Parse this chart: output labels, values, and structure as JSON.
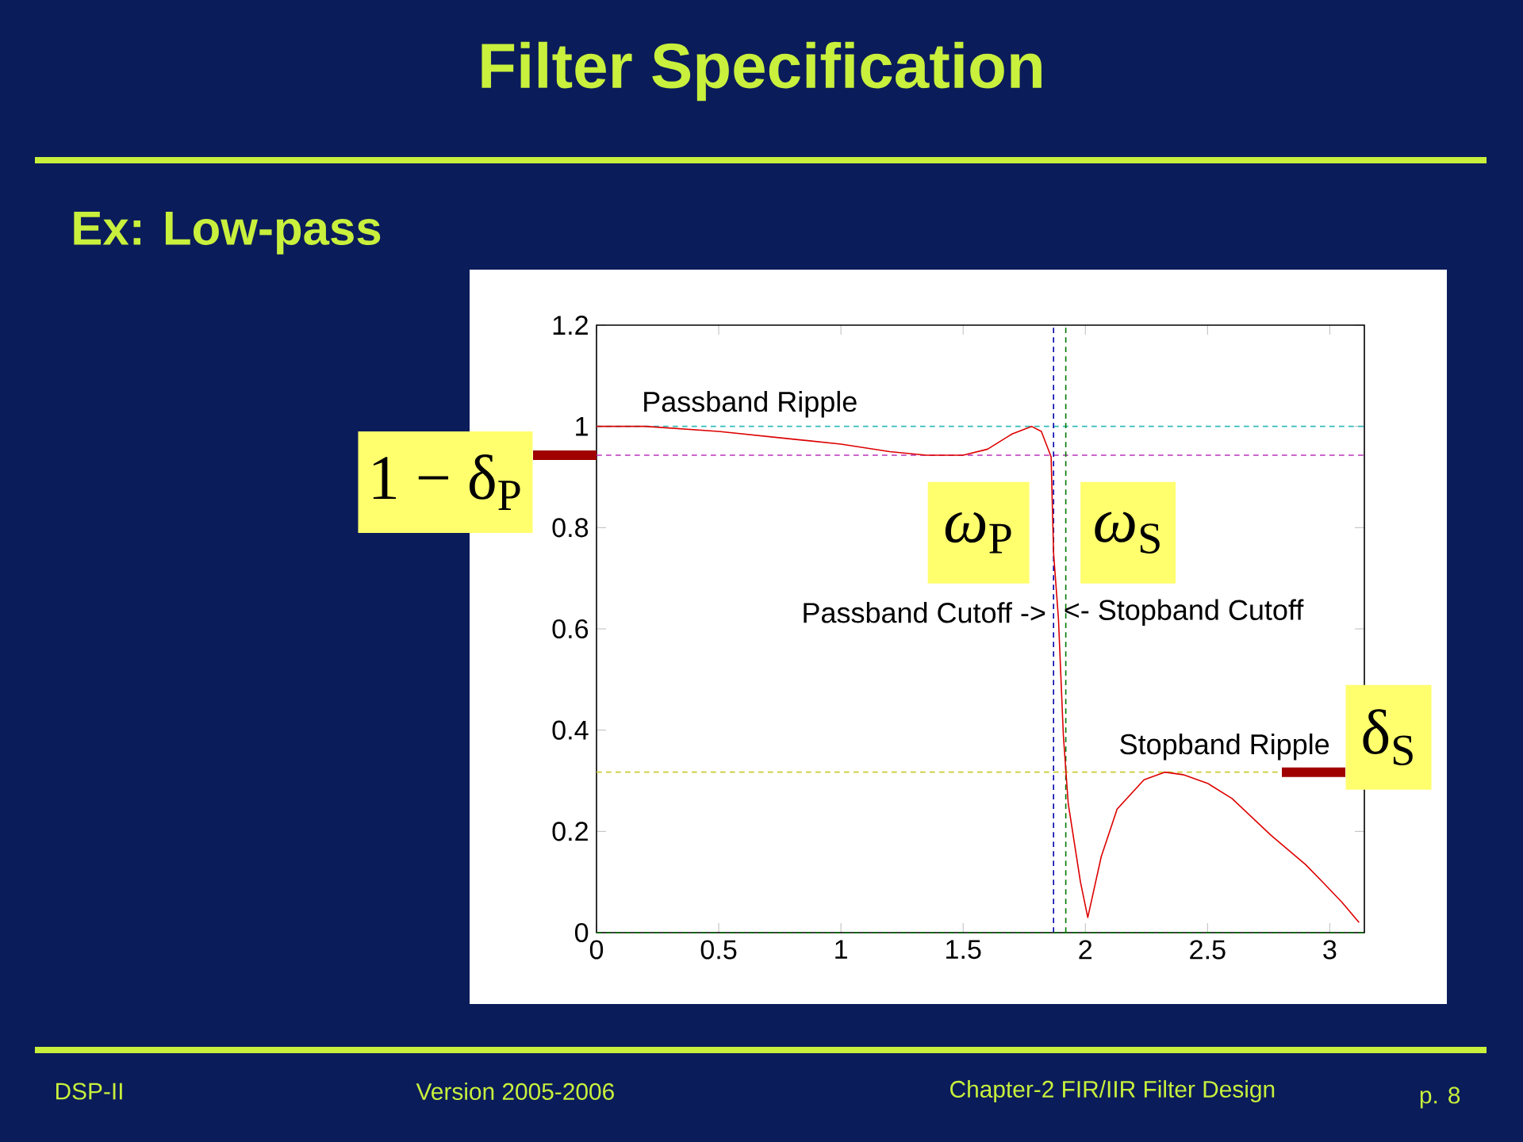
{
  "chart_data": {
    "type": "line",
    "title": "Filter Specification",
    "subtitle": "Ex: Low-pass",
    "x": [
      0,
      0.2,
      0.5,
      0.8,
      1.0,
      1.2,
      1.35,
      1.5,
      1.6,
      1.7,
      1.78,
      1.82,
      1.86,
      1.87,
      1.89,
      1.91,
      1.93,
      1.98,
      2.01,
      2.065,
      2.13,
      2.24,
      2.325,
      2.4,
      2.5,
      2.6,
      2.76,
      2.9,
      2.975,
      3.05,
      3.12
    ],
    "values": [
      1.0,
      1.0,
      0.99,
      0.975,
      0.965,
      0.95,
      0.943,
      0.943,
      0.955,
      0.985,
      1.0,
      0.99,
      0.94,
      0.75,
      0.62,
      0.39,
      0.255,
      0.1,
      0.03,
      0.15,
      0.244,
      0.302,
      0.317,
      0.312,
      0.295,
      0.265,
      0.192,
      0.135,
      0.098,
      0.06,
      0.02
    ],
    "color": "#dd0000",
    "xlim": [
      0,
      3.1416
    ],
    "ylim": [
      0,
      1.2
    ],
    "xticks": [
      0,
      0.5,
      1,
      1.5,
      2,
      2.5,
      3
    ],
    "yticks": [
      0,
      0.2,
      0.4,
      0.6,
      0.8,
      1,
      1.2
    ],
    "ref_lines": [
      {
        "axis": "y",
        "value": 1,
        "label": "Passband Ripple",
        "color": "#33bbbb",
        "line_style": "dashed"
      },
      {
        "axis": "y",
        "value": 0.943,
        "color": "#bb33bb",
        "line_style": "dashed"
      },
      {
        "axis": "y",
        "value": 0.317,
        "label": "Stopband Ripple",
        "color": "#cccc33",
        "line_style": "dashed"
      },
      {
        "axis": "x",
        "value": 1.87,
        "label": "Passband Cutoff ->",
        "color": "#0000aa",
        "line_style": "dashed"
      },
      {
        "axis": "x",
        "value": 1.92,
        "label": "<- Stopband Cutoff",
        "color": "#007700",
        "line_style": "dashed"
      },
      {
        "axis": "y",
        "value": 0,
        "color": "#007700",
        "line_style": "dashed"
      }
    ],
    "annotations": [
      {
        "text": "1 − δ$_{P}$",
        "x": 0,
        "y": 0.943
      },
      {
        "text": "*ω*$_{P}$",
        "x": 1.87,
        "y": 0.79
      },
      {
        "text": "*ω*$_{S}$",
        "x": 1.92,
        "y": 0.79
      },
      {
        "text": "δ$_{S}$",
        "x": 3.1416,
        "y": 0.317
      },
      "DSP-II",
      "Version 2005-2006",
      "Chapter-2 FIR/IIR  Filter Design",
      "p. 8"
    ]
  }
}
